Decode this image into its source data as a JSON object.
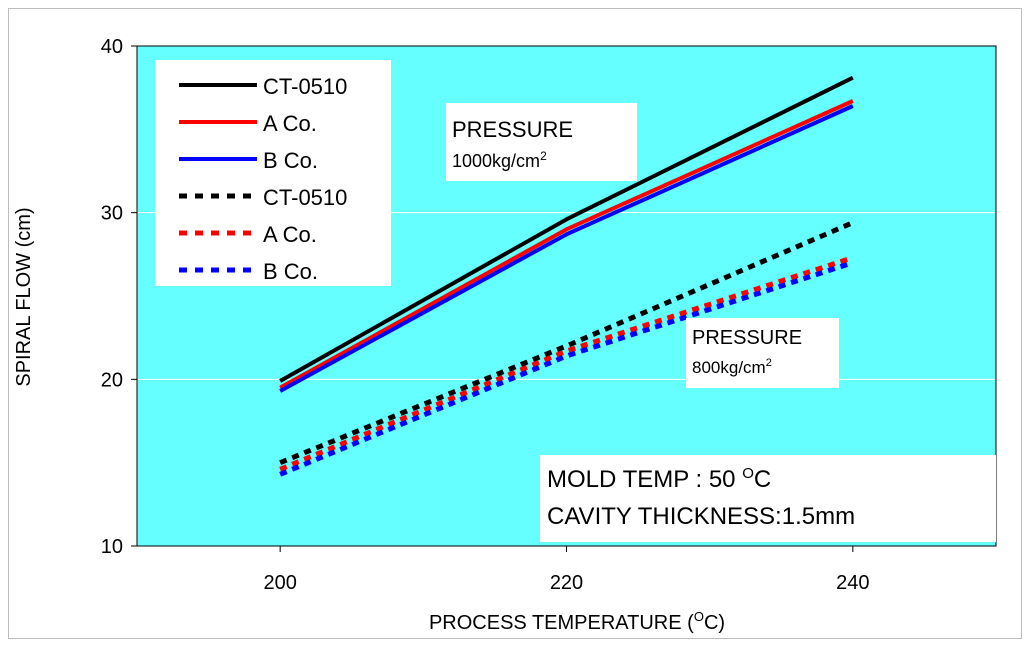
{
  "chart_data": {
    "type": "line",
    "xlabel": "PROCESS TEMPERATURE (",
    "xlabel_sup": "O",
    "xlabel_tail": "C)",
    "ylabel": "SPIRAL FLOW (cm)",
    "x_ticks": [
      "200",
      "220",
      "240"
    ],
    "y_ticks": [
      "10",
      "20",
      "30",
      "40"
    ],
    "xlim": [
      190,
      250
    ],
    "ylim": [
      10,
      40
    ],
    "grid": true,
    "x": [
      200,
      220,
      240
    ],
    "legend_position": "top-left",
    "series": [
      {
        "name": "CT-0510",
        "style": "solid",
        "color": "#000000",
        "values": [
          19.9,
          29.6,
          38.1
        ]
      },
      {
        "name": "A Co.",
        "style": "solid",
        "color": "#ff0000",
        "values": [
          19.5,
          29.0,
          36.7
        ]
      },
      {
        "name": "B Co.",
        "style": "solid",
        "color": "#0000ff",
        "values": [
          19.3,
          28.7,
          36.4
        ]
      },
      {
        "name": "CT-0510",
        "style": "dashed",
        "color": "#000000",
        "values": [
          15.0,
          22.0,
          29.4
        ]
      },
      {
        "name": "A Co.",
        "style": "dashed",
        "color": "#ff0000",
        "values": [
          14.6,
          21.7,
          27.3
        ]
      },
      {
        "name": "B Co.",
        "style": "dashed",
        "color": "#0000ff",
        "values": [
          14.3,
          21.4,
          27.0
        ]
      }
    ],
    "annotations": {
      "pressure_high": {
        "line1": "PRESSURE",
        "line2": "1000kg/cm",
        "sup": "2"
      },
      "pressure_low": {
        "line1": "PRESSURE",
        "line2": "800kg/cm",
        "sup": "2"
      },
      "mold_temp": {
        "text": "MOLD TEMP : 50 ",
        "sup": "O",
        "tail": "C"
      },
      "cavity": {
        "text": "CAVITY THICKNESS:1.5mm"
      }
    }
  },
  "colors": {
    "plot_background": "#66ffff",
    "gridline": "#ffffff",
    "annotation_background": "#ffffff"
  }
}
